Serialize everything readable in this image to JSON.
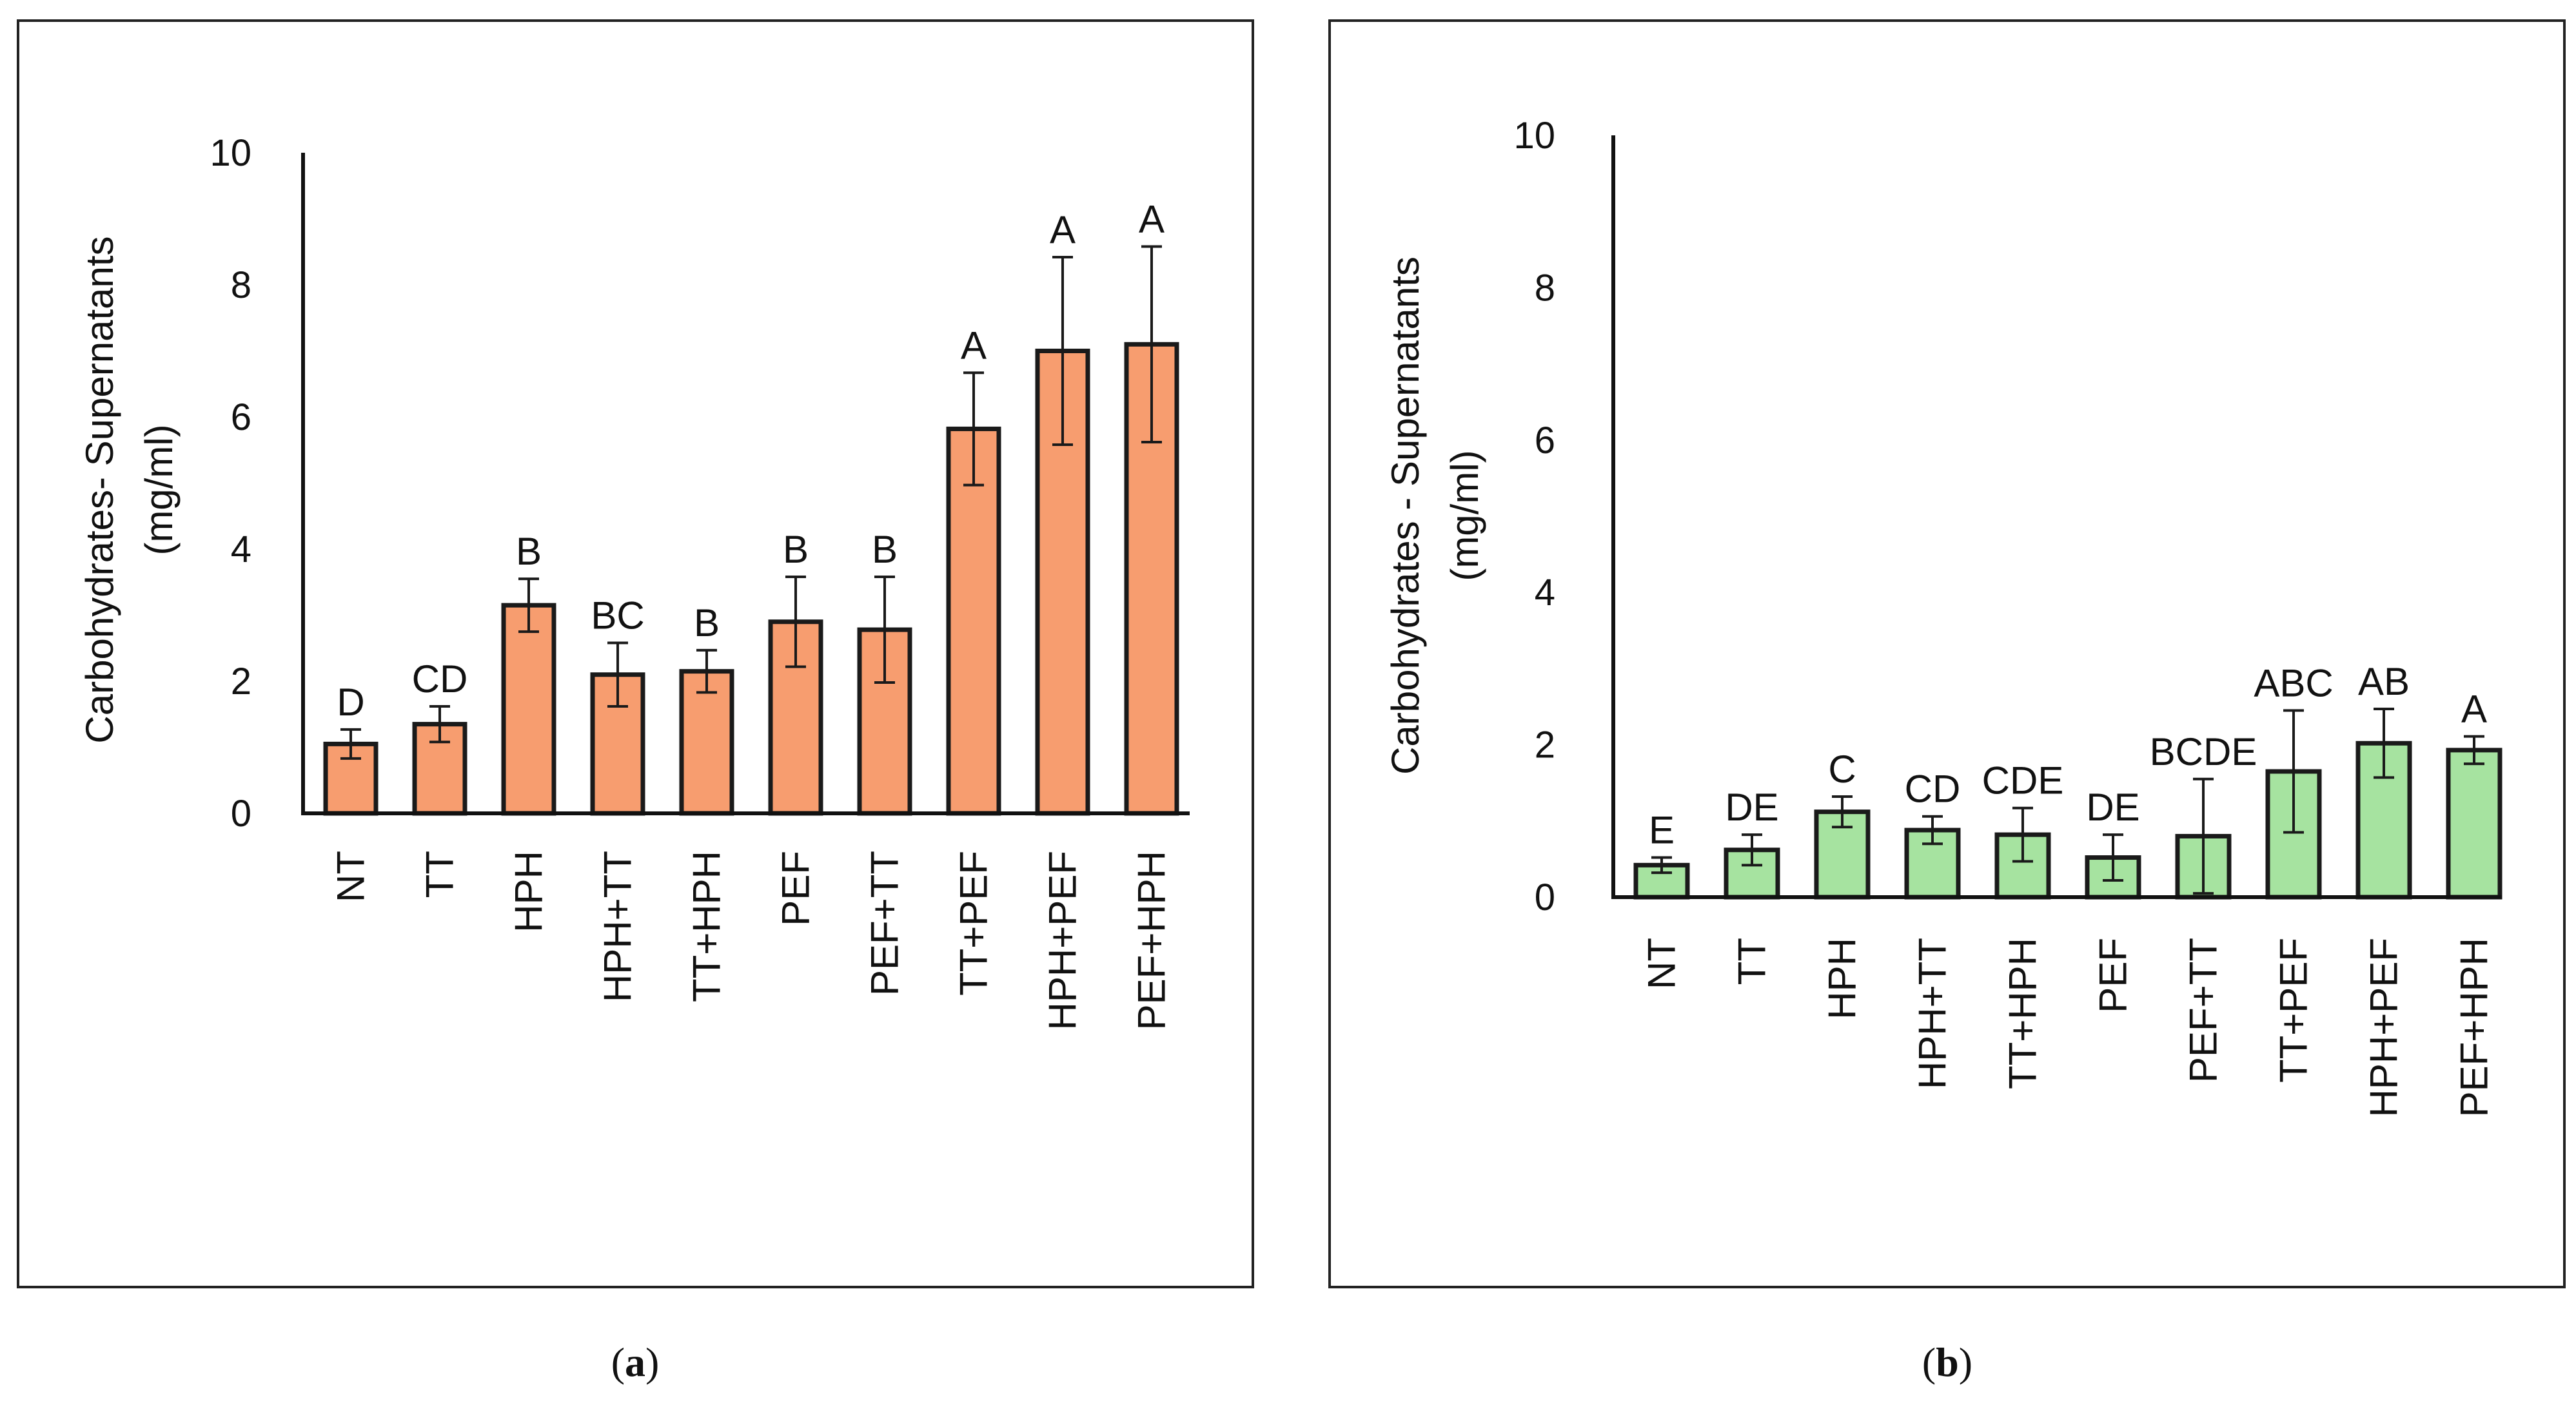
{
  "chart_data": [
    {
      "type": "bar",
      "panel_label": "a",
      "ylabel": [
        "Carbohydrates- Supernatants",
        "(mg/ml)"
      ],
      "xlabel": "",
      "ylim": [
        0,
        10
      ],
      "yticks": [
        0,
        2,
        4,
        6,
        8,
        10
      ],
      "grid": false,
      "bar_color": "#F79D6F",
      "categories": [
        "NT",
        "TT",
        "HPH",
        "HPH+TT",
        "TT+HPH",
        "PEF",
        "PEF+TT",
        "TT+PEF",
        "HPH+PEF",
        "PEF+HPH"
      ],
      "values": [
        1.05,
        1.35,
        3.15,
        2.1,
        2.15,
        2.9,
        2.78,
        5.82,
        7.0,
        7.1
      ],
      "errors": [
        0.22,
        0.27,
        0.4,
        0.48,
        0.32,
        0.68,
        0.8,
        0.85,
        1.42,
        1.48
      ],
      "significance": [
        "D",
        "CD",
        "B",
        "BC",
        "B",
        "B",
        "B",
        "A",
        "A",
        "A"
      ]
    },
    {
      "type": "bar",
      "panel_label": "b",
      "ylabel": [
        "Carbohydrates - Supernatants",
        "(mg/ml)"
      ],
      "xlabel": "",
      "ylim": [
        0,
        10
      ],
      "yticks": [
        0,
        2,
        4,
        6,
        8,
        10
      ],
      "grid": false,
      "bar_color": "#A6E3A0",
      "categories": [
        "NT",
        "TT",
        "HPH",
        "HPH+TT",
        "TT+HPH",
        "PEF",
        "PEF+TT",
        "TT+PEF",
        "HPH+PEF",
        "PEF+HPH"
      ],
      "values": [
        0.42,
        0.62,
        1.12,
        0.88,
        0.82,
        0.52,
        0.8,
        1.65,
        2.02,
        1.93
      ],
      "errors": [
        0.1,
        0.2,
        0.2,
        0.18,
        0.35,
        0.3,
        0.75,
        0.8,
        0.45,
        0.18
      ],
      "significance": [
        "E",
        "DE",
        "C",
        "CD",
        "CDE",
        "DE",
        "BCDE",
        "ABC",
        "AB",
        "A"
      ]
    }
  ]
}
